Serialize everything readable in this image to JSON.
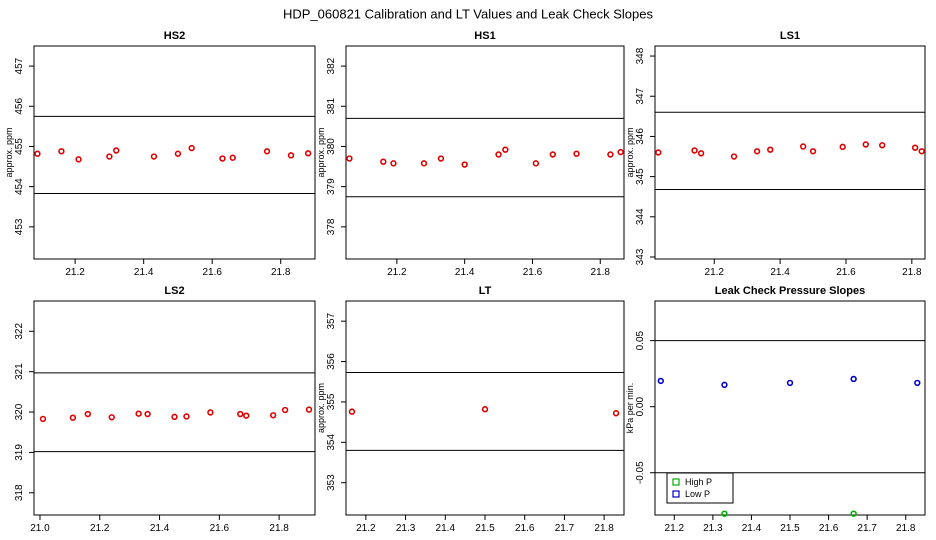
{
  "figure_title": "HDP_060821  Calibration and LT Values and Leak Check Slopes",
  "chart_data": [
    {
      "type": "scatter",
      "title": "HS2",
      "xlabel": "",
      "ylabel": "approx. ppm",
      "xlim": [
        21.08,
        21.9
      ],
      "ylim": [
        452.2,
        457.5
      ],
      "xticks": [
        21.2,
        21.4,
        21.6,
        21.8
      ],
      "yticks": [
        453,
        454,
        455,
        456,
        457
      ],
      "hlines": [
        455.75,
        453.83
      ],
      "series": [
        {
          "color": "#e00000",
          "marker": "circle",
          "points": [
            [
              21.09,
              454.82
            ],
            [
              21.16,
              454.88
            ],
            [
              21.21,
              454.68
            ],
            [
              21.3,
              454.75
            ],
            [
              21.32,
              454.9
            ],
            [
              21.43,
              454.75
            ],
            [
              21.5,
              454.82
            ],
            [
              21.54,
              454.96
            ],
            [
              21.63,
              454.7
            ],
            [
              21.66,
              454.72
            ],
            [
              21.76,
              454.88
            ],
            [
              21.83,
              454.78
            ],
            [
              21.88,
              454.83
            ]
          ]
        }
      ]
    },
    {
      "type": "scatter",
      "title": "HS1",
      "xlabel": "",
      "ylabel": "approx. ppm",
      "xlim": [
        21.05,
        21.87
      ],
      "ylim": [
        377.2,
        382.5
      ],
      "xticks": [
        21.2,
        21.4,
        21.6,
        21.8
      ],
      "yticks": [
        378,
        379,
        380,
        381,
        382
      ],
      "hlines": [
        380.7,
        378.75
      ],
      "series": [
        {
          "color": "#e00000",
          "marker": "circle",
          "points": [
            [
              21.06,
              379.7
            ],
            [
              21.16,
              379.62
            ],
            [
              21.19,
              379.58
            ],
            [
              21.28,
              379.58
            ],
            [
              21.33,
              379.7
            ],
            [
              21.4,
              379.55
            ],
            [
              21.5,
              379.8
            ],
            [
              21.52,
              379.92
            ],
            [
              21.61,
              379.58
            ],
            [
              21.66,
              379.8
            ],
            [
              21.73,
              379.82
            ],
            [
              21.83,
              379.8
            ],
            [
              21.86,
              379.86
            ]
          ]
        }
      ]
    },
    {
      "type": "scatter",
      "title": "LS1",
      "xlabel": "",
      "ylabel": "approx. ppm",
      "xlim": [
        21.02,
        21.84
      ],
      "ylim": [
        342.95,
        348.25
      ],
      "xticks": [
        21.2,
        21.4,
        21.6,
        21.8
      ],
      "yticks": [
        343,
        344,
        345,
        346,
        347,
        348
      ],
      "hlines": [
        346.6,
        344.68
      ],
      "series": [
        {
          "color": "#e00000",
          "marker": "circle",
          "points": [
            [
              21.03,
              345.6
            ],
            [
              21.14,
              345.65
            ],
            [
              21.16,
              345.58
            ],
            [
              21.26,
              345.5
            ],
            [
              21.33,
              345.63
            ],
            [
              21.37,
              345.67
            ],
            [
              21.47,
              345.75
            ],
            [
              21.5,
              345.63
            ],
            [
              21.59,
              345.74
            ],
            [
              21.66,
              345.8
            ],
            [
              21.71,
              345.78
            ],
            [
              21.81,
              345.72
            ],
            [
              21.83,
              345.63
            ]
          ]
        }
      ]
    },
    {
      "type": "scatter",
      "title": "LS2",
      "xlabel": "",
      "ylabel": "",
      "xlim": [
        20.98,
        21.92
      ],
      "ylim": [
        317.45,
        322.75
      ],
      "xticks": [
        21.0,
        21.2,
        21.4,
        21.6,
        21.8
      ],
      "yticks": [
        318,
        319,
        320,
        321,
        322
      ],
      "hlines": [
        320.97,
        319.02
      ],
      "series": [
        {
          "color": "#e00000",
          "marker": "circle",
          "points": [
            [
              21.01,
              319.83
            ],
            [
              21.11,
              319.86
            ],
            [
              21.16,
              319.95
            ],
            [
              21.24,
              319.87
            ],
            [
              21.33,
              319.96
            ],
            [
              21.36,
              319.95
            ],
            [
              21.45,
              319.88
            ],
            [
              21.49,
              319.89
            ],
            [
              21.57,
              319.99
            ],
            [
              21.67,
              319.95
            ],
            [
              21.69,
              319.91
            ],
            [
              21.78,
              319.92
            ],
            [
              21.82,
              320.05
            ],
            [
              21.9,
              320.06
            ]
          ]
        }
      ]
    },
    {
      "type": "scatter",
      "title": "LT",
      "xlabel": "",
      "ylabel": "approx. ppm",
      "xlim": [
        21.15,
        21.85
      ],
      "ylim": [
        352.2,
        357.5
      ],
      "xticks": [
        21.2,
        21.3,
        21.4,
        21.5,
        21.6,
        21.7,
        21.8
      ],
      "yticks": [
        353,
        354,
        355,
        356,
        357
      ],
      "hlines": [
        355.73,
        353.8
      ],
      "series": [
        {
          "color": "#e00000",
          "marker": "circle",
          "points": [
            [
              21.165,
              354.76
            ],
            [
              21.5,
              354.82
            ],
            [
              21.83,
              354.72
            ]
          ]
        }
      ]
    },
    {
      "type": "scatter",
      "title": "Leak Check Pressure Slopes",
      "xlabel": "",
      "ylabel": "kPa per min.",
      "xlim": [
        21.15,
        21.85
      ],
      "ylim": [
        -0.082,
        0.08
      ],
      "xticks": [
        21.2,
        21.3,
        21.4,
        21.5,
        21.6,
        21.7,
        21.8
      ],
      "yticks": [
        -0.05,
        0.0,
        0.05
      ],
      "ytick_labels": [
        "-0.05",
        "0.00",
        "0.05"
      ],
      "hlines": [
        0.05,
        -0.05
      ],
      "legend": {
        "placement": "bottom-left",
        "entries": [
          "High P",
          "Low P"
        ]
      },
      "series": [
        {
          "name": "High P",
          "color": "#00b000",
          "marker": "circle",
          "points": [
            [
              21.33,
              -0.081
            ],
            [
              21.665,
              -0.081
            ]
          ]
        },
        {
          "name": "Low P",
          "color": "#0000d0",
          "marker": "circle",
          "points": [
            [
              21.165,
              0.0195
            ],
            [
              21.33,
              0.0165
            ],
            [
              21.5,
              0.018
            ],
            [
              21.665,
              0.021
            ],
            [
              21.83,
              0.018
            ]
          ]
        }
      ]
    }
  ]
}
